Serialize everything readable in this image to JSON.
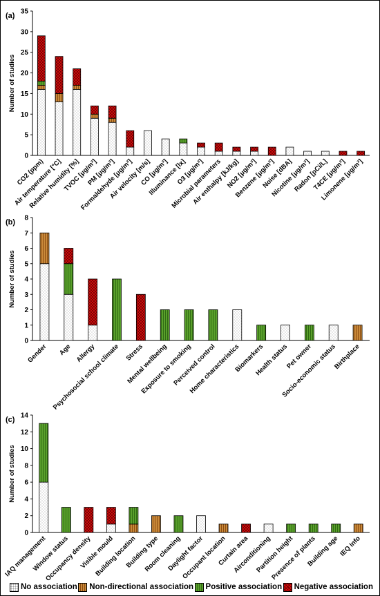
{
  "colors": {
    "no_association": "#ffffff",
    "non_directional_association": "#c98a3a",
    "positive_association": "#5aa02c",
    "negative_association": "#e01010"
  },
  "legend": {
    "no_association": "No association",
    "non_directional_association": "Non-directional association",
    "positive_association": "Positive association",
    "negative_association": "Negative association"
  },
  "chart_data": [
    {
      "type": "bar",
      "stacked": true,
      "panel_label": "(a)",
      "ylabel": "Number of studies",
      "ylim": [
        0,
        35
      ],
      "yticks": [
        0,
        5,
        10,
        15,
        20,
        25,
        30,
        35
      ],
      "categories": [
        "CO2 (ppm)",
        "Air temperature [°C]",
        "Relative humidity [%]",
        "TVOC [μg/m³]",
        "PM [μg/m³]",
        "Formaldehyde [μg/m³]",
        "Air velocity [m/s]",
        "CO [μg/m³]",
        "Illuminance [lx]",
        "O3 [μg/m³]",
        "Microbial parameters",
        "Air enthalpy [kJ/kg]",
        "NO2 [μg/m³]",
        "Benzene [μg/m³]",
        "Noise [dBA]",
        "Nicotine [μg/m³]",
        "Radon [pCi/L]",
        "T4CE [μg/m³]",
        "Limonene [μg/m³]"
      ],
      "series": [
        {
          "name": "No association",
          "values": [
            16,
            13,
            16,
            9,
            8,
            2,
            6,
            4,
            3,
            2,
            1,
            1,
            1,
            0,
            2,
            1,
            1,
            0,
            0
          ]
        },
        {
          "name": "Non-directional association",
          "values": [
            1,
            2,
            1,
            1,
            1,
            0,
            0,
            0,
            0,
            0,
            0,
            0,
            0,
            0,
            0,
            0,
            0,
            0,
            0
          ]
        },
        {
          "name": "Positive association",
          "values": [
            1,
            0,
            0,
            0,
            0,
            0,
            0,
            0,
            1,
            0,
            0,
            0,
            0,
            0,
            0,
            0,
            0,
            0,
            0
          ]
        },
        {
          "name": "Negative association",
          "values": [
            11,
            9,
            4,
            2,
            3,
            4,
            0,
            0,
            0,
            1,
            2,
            1,
            1,
            2,
            0,
            0,
            0,
            1,
            1
          ]
        }
      ]
    },
    {
      "type": "bar",
      "stacked": true,
      "panel_label": "(b)",
      "ylabel": "Number of studies",
      "ylim": [
        0,
        8
      ],
      "yticks": [
        0,
        1,
        2,
        3,
        4,
        5,
        6,
        7,
        8
      ],
      "categories": [
        "Gender",
        "Age",
        "Allergy",
        "Psychosocial school climate",
        "Stress",
        "Mental wellbeing",
        "Exposure to smoking",
        "Perceived control",
        "Home characteristics",
        "Biomarkers",
        "Health status",
        "Pet owner",
        "Socio-economic status",
        "Birthplace"
      ],
      "series": [
        {
          "name": "No association",
          "values": [
            5,
            3,
            1,
            0,
            0,
            0,
            0,
            0,
            2,
            0,
            1,
            0,
            1,
            0
          ]
        },
        {
          "name": "Non-directional association",
          "values": [
            2,
            0,
            0,
            0,
            0,
            0,
            0,
            0,
            0,
            0,
            0,
            0,
            0,
            1
          ]
        },
        {
          "name": "Positive association",
          "values": [
            0,
            2,
            0,
            4,
            0,
            2,
            2,
            2,
            0,
            1,
            0,
            1,
            0,
            0
          ]
        },
        {
          "name": "Negative association",
          "values": [
            0,
            1,
            3,
            0,
            3,
            0,
            0,
            0,
            0,
            0,
            0,
            0,
            0,
            0
          ]
        }
      ]
    },
    {
      "type": "bar",
      "stacked": true,
      "panel_label": "(c)",
      "ylabel": "Number of studies",
      "ylim": [
        0,
        14
      ],
      "yticks": [
        0,
        2,
        4,
        6,
        8,
        10,
        12,
        14
      ],
      "categories": [
        "IAQ management",
        "Window status",
        "Occupancy density",
        "Visible mould",
        "Building location",
        "Building type",
        "Room cleaning",
        "Daylight factor",
        "Occupant location",
        "Curtain area",
        "Airconditioning",
        "Partition height",
        "Presence of plants",
        "Building age",
        "IEQ info"
      ],
      "series": [
        {
          "name": "No association",
          "values": [
            6,
            0,
            0,
            1,
            0,
            0,
            0,
            2,
            0,
            0,
            1,
            0,
            0,
            0,
            0
          ]
        },
        {
          "name": "Non-directional association",
          "values": [
            0,
            0,
            0,
            0,
            1,
            2,
            0,
            0,
            1,
            0,
            0,
            0,
            0,
            0,
            1
          ]
        },
        {
          "name": "Positive association",
          "values": [
            7,
            3,
            0,
            0,
            2,
            0,
            2,
            0,
            0,
            0,
            0,
            1,
            1,
            1,
            0
          ]
        },
        {
          "name": "Negative association",
          "values": [
            0,
            0,
            3,
            2,
            0,
            0,
            0,
            0,
            0,
            1,
            0,
            0,
            0,
            0,
            0
          ]
        }
      ]
    }
  ]
}
